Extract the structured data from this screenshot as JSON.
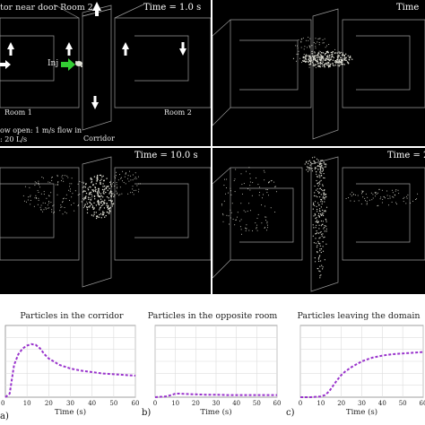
{
  "panels": {
    "p1": {
      "time": "Time = 1.0 s",
      "title": "tor near door Room 2",
      "inj": "Inj",
      "room1": "Room 1",
      "room2": "Room 2",
      "corridor": "Corridor",
      "flow_line1": "ow open: 1 m/s flow in",
      "flow_line2": ": 20 L/s"
    },
    "p2": {
      "time": "Time"
    },
    "p3": {
      "time": "Time = 10.0 s"
    },
    "p4": {
      "time": "Time = 2"
    }
  },
  "colors": {
    "background": "#000000",
    "wireframe": "#9a9a9a",
    "particles": "#e0e0d6",
    "arrows": "#ffffff",
    "inject_arrow": "#33cc33",
    "curve": "#9933cc"
  },
  "chart_data": [
    {
      "type": "line",
      "title": "Particles in the corridor",
      "xlabel": "Time (s)",
      "letter": "",
      "x_ticks": [
        10,
        20,
        30,
        40,
        50,
        60
      ],
      "xlim": [
        0,
        60
      ],
      "ylim": [
        0,
        100
      ],
      "series": [
        {
          "x": [
            0,
            2,
            4,
            6,
            8,
            10,
            12,
            14,
            16,
            18,
            20,
            25,
            30,
            35,
            40,
            45,
            50,
            55,
            60
          ],
          "y": [
            0,
            5,
            45,
            60,
            68,
            72,
            74,
            73,
            68,
            60,
            54,
            45,
            40,
            37,
            35,
            33,
            32,
            31,
            30
          ]
        }
      ]
    },
    {
      "type": "line",
      "title": "Particles in the opposite room",
      "xlabel": "Time (s)",
      "letter": "b)",
      "x_ticks": [
        0,
        10,
        20,
        30,
        40,
        50,
        60
      ],
      "xlim": [
        0,
        60
      ],
      "ylim": [
        0,
        100
      ],
      "series": [
        {
          "x": [
            0,
            5,
            8,
            10,
            12,
            15,
            20,
            25,
            30,
            35,
            40,
            45,
            50,
            55,
            60
          ],
          "y": [
            0,
            1,
            3,
            5,
            5,
            4.5,
            4,
            3.5,
            3.5,
            3,
            3,
            3,
            3,
            3,
            3
          ]
        }
      ]
    },
    {
      "type": "line",
      "title": "Particles leaving the domain",
      "xlabel": "Time (s)",
      "letter": "c)",
      "x_ticks": [
        0,
        10,
        20,
        30,
        40,
        50,
        60
      ],
      "xlim": [
        0,
        60
      ],
      "ylim": [
        0,
        100
      ],
      "series": [
        {
          "x": [
            0,
            5,
            10,
            12,
            14,
            16,
            18,
            20,
            22,
            25,
            30,
            35,
            40,
            45,
            50,
            55,
            60
          ],
          "y": [
            0,
            0,
            1,
            3,
            8,
            16,
            24,
            31,
            36,
            42,
            50,
            55,
            58,
            60,
            61,
            62,
            63
          ]
        }
      ]
    }
  ],
  "left_fragments": {
    "a_tick": "0",
    "a_letter": "a)"
  }
}
